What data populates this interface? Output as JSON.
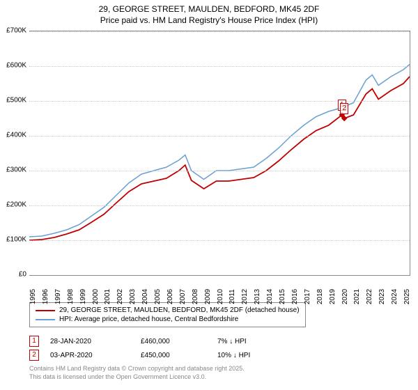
{
  "title": "29, GEORGE STREET, MAULDEN, BEDFORD, MK45 2DF",
  "subtitle": "Price paid vs. HM Land Registry's House Price Index (HPI)",
  "chart": {
    "type": "line",
    "background_color": "#ffffff",
    "grid_color": "#cccccc",
    "axis_color": "#888888",
    "title_fontsize": 12,
    "label_fontsize": 10,
    "ylim": [
      0,
      700000
    ],
    "ytick_step": 100000,
    "yticks": [
      "£0",
      "£100K",
      "£200K",
      "£300K",
      "£400K",
      "£500K",
      "£600K",
      "£700K"
    ],
    "xlim": [
      1995,
      2025.5
    ],
    "xticks": [
      "1995",
      "1996",
      "1997",
      "1998",
      "1999",
      "2000",
      "2001",
      "2002",
      "2003",
      "2004",
      "2005",
      "2006",
      "2007",
      "2008",
      "2009",
      "2010",
      "2011",
      "2012",
      "2013",
      "2014",
      "2015",
      "2016",
      "2017",
      "2018",
      "2019",
      "2020",
      "2021",
      "2022",
      "2023",
      "2024",
      "2025"
    ],
    "series": [
      {
        "name": "HPI: Average price, detached house, Central Bedfordshire",
        "color": "#6a9fd4",
        "line_width": 1.5,
        "x": [
          1995,
          1996,
          1997,
          1998,
          1999,
          2000,
          2001,
          2002,
          2003,
          2004,
          2005,
          2006,
          2007,
          2007.5,
          2008,
          2009,
          2010,
          2011,
          2012,
          2013,
          2014,
          2015,
          2016,
          2017,
          2018,
          2019,
          2020,
          2021,
          2022,
          2022.5,
          2023,
          2024,
          2025,
          2025.5
        ],
        "y": [
          110000,
          112000,
          120000,
          130000,
          145000,
          170000,
          195000,
          230000,
          265000,
          290000,
          300000,
          310000,
          330000,
          345000,
          300000,
          275000,
          300000,
          300000,
          305000,
          310000,
          335000,
          365000,
          400000,
          430000,
          455000,
          470000,
          480000,
          495000,
          560000,
          575000,
          545000,
          570000,
          590000,
          605000
        ]
      },
      {
        "name": "29, GEORGE STREET, MAULDEN, BEDFORD, MK45 2DF (detached house)",
        "color": "#c00000",
        "line_width": 1.8,
        "x": [
          1995,
          1996,
          1997,
          1998,
          1999,
          2000,
          2001,
          2002,
          2003,
          2004,
          2005,
          2006,
          2007,
          2007.5,
          2008,
          2009,
          2010,
          2011,
          2012,
          2013,
          2014,
          2015,
          2016,
          2017,
          2018,
          2019,
          2020.07,
          2020.26,
          2021,
          2022,
          2022.5,
          2023,
          2024,
          2025,
          2025.5
        ],
        "y": [
          100000,
          102000,
          108000,
          118000,
          130000,
          152000,
          175000,
          208000,
          240000,
          262000,
          270000,
          278000,
          300000,
          316000,
          272000,
          248000,
          270000,
          270000,
          275000,
          280000,
          300000,
          328000,
          360000,
          390000,
          415000,
          430000,
          460000,
          450000,
          460000,
          520000,
          535000,
          505000,
          530000,
          550000,
          570000
        ]
      }
    ],
    "sale_markers": [
      {
        "n": "1",
        "x": 2020.07,
        "y": 460000
      },
      {
        "n": "2",
        "x": 2020.26,
        "y": 450000
      }
    ]
  },
  "legend": {
    "items": [
      {
        "color": "#c00000",
        "label": "29, GEORGE STREET, MAULDEN, BEDFORD, MK45 2DF (detached house)"
      },
      {
        "color": "#6a9fd4",
        "label": "HPI: Average price, detached house, Central Bedfordshire"
      }
    ]
  },
  "sales": [
    {
      "n": "1",
      "date": "28-JAN-2020",
      "price": "£460,000",
      "hpi": "7% ↓ HPI"
    },
    {
      "n": "2",
      "date": "03-APR-2020",
      "price": "£450,000",
      "hpi": "10% ↓ HPI"
    }
  ],
  "footer": {
    "line1": "Contains HM Land Registry data © Crown copyright and database right 2025.",
    "line2": "This data is licensed under the Open Government Licence v3.0."
  }
}
